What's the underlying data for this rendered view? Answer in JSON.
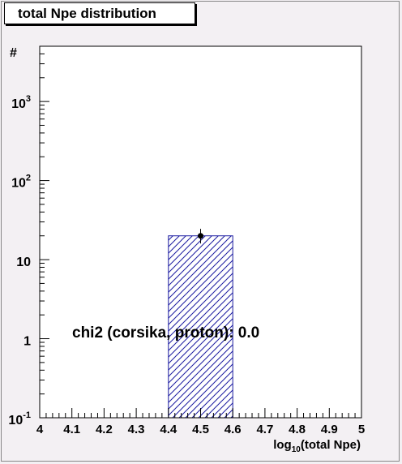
{
  "title": "total Npe distribution",
  "chart_data": {
    "type": "bar",
    "title": "total Npe distribution",
    "xlabel_prefix": "log",
    "xlabel_sub": "10",
    "xlabel_rest": "(total Npe)",
    "ylabel": "#",
    "xlim": [
      4,
      5
    ],
    "ylim": [
      0.1,
      5000
    ],
    "yscale": "log",
    "xticks": [
      "4",
      "4.1",
      "4.2",
      "4.3",
      "4.4",
      "4.5",
      "4.6",
      "4.7",
      "4.8",
      "4.9",
      "5"
    ],
    "yticks": [
      {
        "base": "10",
        "exp": "-1",
        "value": 0.1
      },
      {
        "base": "1",
        "exp": "",
        "value": 1
      },
      {
        "base": "10",
        "exp": "",
        "value": 10
      },
      {
        "base": "10",
        "exp": "2",
        "value": 100
      },
      {
        "base": "10",
        "exp": "3",
        "value": 1000
      }
    ],
    "bins": [
      {
        "x0": 4.4,
        "x1": 4.6,
        "value": 20
      }
    ],
    "points": [
      {
        "x": 4.5,
        "y": 20,
        "ylow": 16,
        "yhigh": 24.5
      }
    ],
    "annotation": "chi2 (corsika, proton): 0.0",
    "colors": {
      "frame": "#000000",
      "bar": "#1a1aa0",
      "background": "#ffffff"
    }
  }
}
